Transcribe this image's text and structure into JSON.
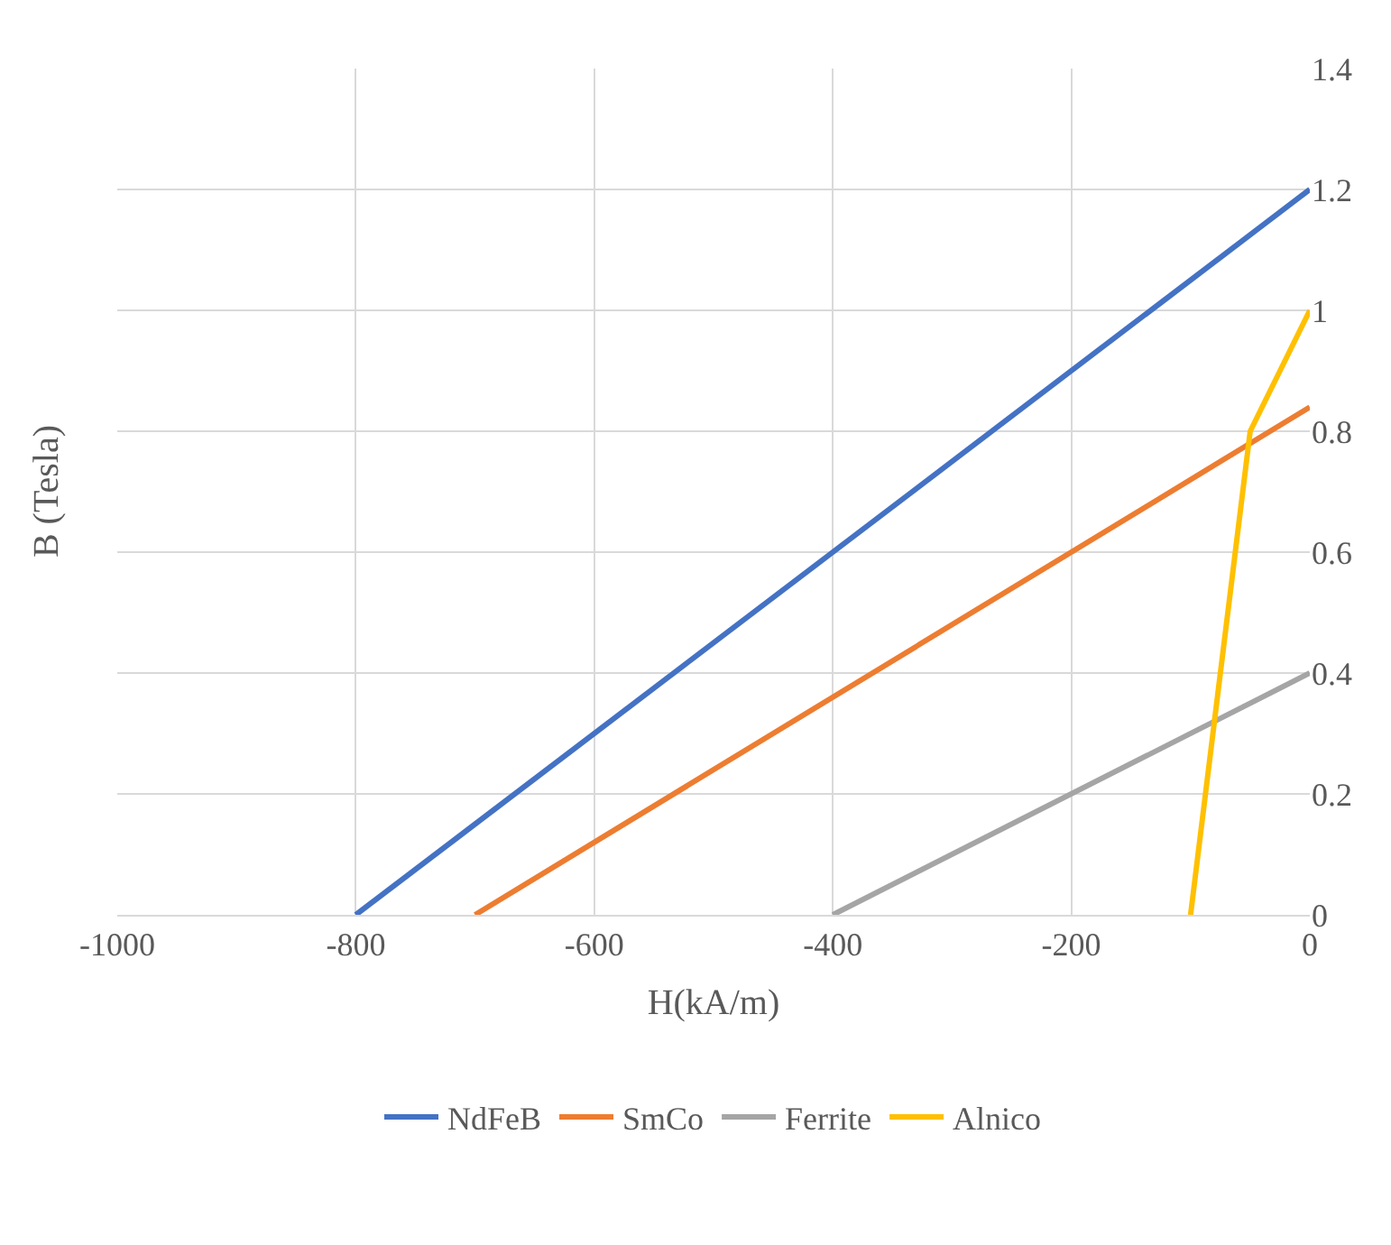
{
  "chart_data": {
    "type": "line",
    "xlabel": "H(kA/m)",
    "ylabel": "B (Tesla)",
    "xlim": [
      -1000,
      0
    ],
    "xticks": [
      -1000,
      -800,
      -600,
      -400,
      -200,
      0
    ],
    "ylim": [
      0,
      1.4
    ],
    "yticks": [
      0,
      0.2,
      0.4,
      0.6,
      0.8,
      1,
      1.2,
      1.4
    ],
    "grid": true,
    "legend": "bottom",
    "marker": "none",
    "line_style": "solid",
    "series": [
      {
        "name": "NdFeB",
        "color": "#4472c4",
        "x": [
          -800,
          0
        ],
        "values": [
          0,
          1.2
        ]
      },
      {
        "name": "SmCo",
        "color": "#ed7d31",
        "x": [
          -700,
          0
        ],
        "values": [
          0,
          0.84
        ]
      },
      {
        "name": "Ferrite",
        "color": "#a5a5a5",
        "x": [
          -400,
          0
        ],
        "values": [
          0,
          0.4
        ]
      },
      {
        "name": "Alnico",
        "color": "#ffc000",
        "x": [
          -100,
          -50,
          0
        ],
        "values": [
          0,
          0.8,
          1
        ]
      }
    ]
  }
}
